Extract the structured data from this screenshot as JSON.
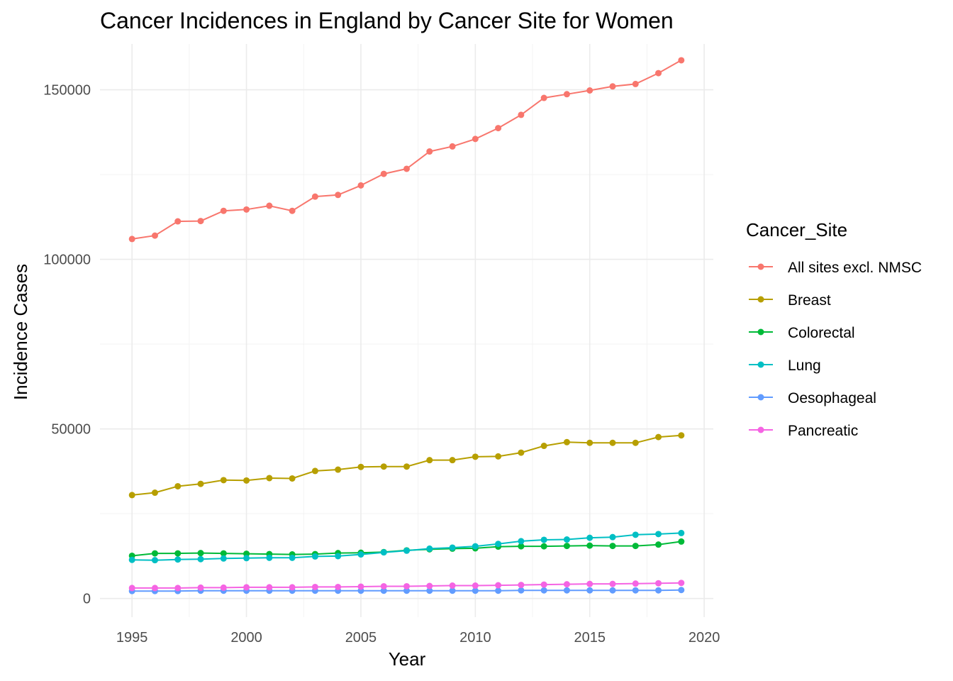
{
  "chart_data": {
    "type": "line",
    "title": "Cancer Incidences in England by Cancer Site for Women",
    "xlabel": "Year",
    "ylabel": "Incidence Cases",
    "xlim": [
      1993.6,
      2020.4
    ],
    "ylim": [
      -5500,
      163500
    ],
    "x_ticks": [
      1995,
      2000,
      2005,
      2010,
      2015,
      2020
    ],
    "y_ticks": [
      0,
      50000,
      100000,
      150000
    ],
    "grid": true,
    "legend": {
      "title": "Cancer_Site",
      "position": "right"
    },
    "x": [
      1995,
      1996,
      1997,
      1998,
      1999,
      2000,
      2001,
      2002,
      2003,
      2004,
      2005,
      2006,
      2007,
      2008,
      2009,
      2010,
      2011,
      2012,
      2013,
      2014,
      2015,
      2016,
      2017,
      2018,
      2019
    ],
    "series": [
      {
        "name": "All sites excl. NMSC",
        "color": "#F8766D",
        "values": [
          106000,
          107000,
          111200,
          111300,
          114300,
          114700,
          115800,
          114300,
          118500,
          119000,
          121800,
          125200,
          126700,
          131800,
          133300,
          135500,
          138700,
          142600,
          147600,
          148700,
          149800,
          151000,
          151700,
          154900,
          158700
        ]
      },
      {
        "name": "Breast",
        "color": "#B79F00",
        "values": [
          30500,
          31200,
          33100,
          33800,
          34900,
          34800,
          35500,
          35400,
          37600,
          38000,
          38800,
          38900,
          38900,
          40800,
          40800,
          41800,
          41900,
          43000,
          45000,
          46100,
          45900,
          45900,
          45900,
          47600,
          48100
        ]
      },
      {
        "name": "Colorectal",
        "color": "#00BA38",
        "values": [
          12600,
          13300,
          13300,
          13400,
          13300,
          13200,
          13100,
          13000,
          13100,
          13400,
          13500,
          13700,
          14200,
          14500,
          14700,
          14800,
          15300,
          15400,
          15400,
          15500,
          15600,
          15500,
          15500,
          15900,
          16800
        ]
      },
      {
        "name": "Lung",
        "color": "#00BFC4",
        "values": [
          11400,
          11300,
          11500,
          11600,
          11800,
          11900,
          12000,
          12000,
          12400,
          12500,
          13000,
          13600,
          14100,
          14700,
          15000,
          15400,
          16100,
          16900,
          17300,
          17400,
          17900,
          18100,
          18800,
          19000,
          19300
        ]
      },
      {
        "name": "Oesophageal",
        "color": "#619CFF",
        "values": [
          2200,
          2200,
          2200,
          2300,
          2300,
          2300,
          2300,
          2300,
          2300,
          2300,
          2300,
          2300,
          2300,
          2300,
          2300,
          2300,
          2300,
          2400,
          2400,
          2400,
          2400,
          2400,
          2400,
          2400,
          2500
        ]
      },
      {
        "name": "Pancreatic",
        "color": "#F564E3",
        "values": [
          3100,
          3100,
          3100,
          3200,
          3200,
          3300,
          3300,
          3300,
          3400,
          3400,
          3500,
          3600,
          3600,
          3700,
          3800,
          3800,
          3900,
          4000,
          4100,
          4200,
          4300,
          4300,
          4400,
          4500,
          4600
        ]
      }
    ]
  }
}
